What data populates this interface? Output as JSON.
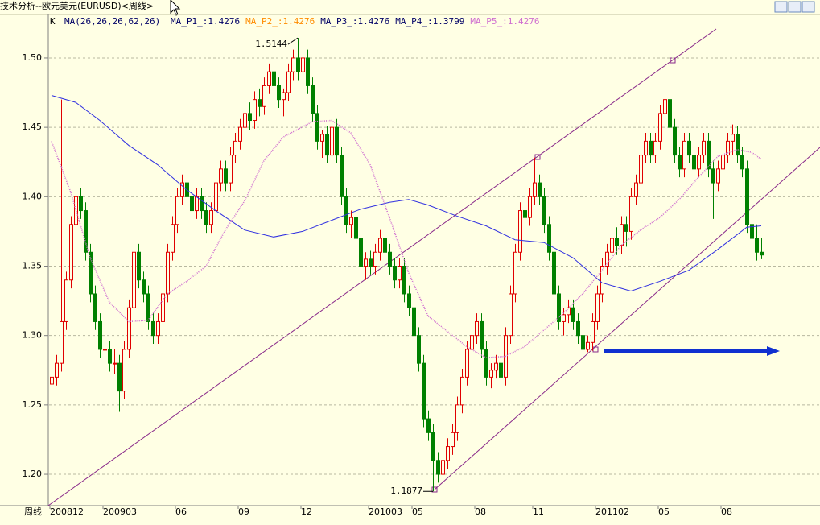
{
  "window_title": "技术分析--欧元美元(EURUSD)<周线>",
  "chart_data": {
    "type": "candlestick",
    "period_label": "周线",
    "indicator_k": "K",
    "indicator_label": "MA(26,26,26,62,26)",
    "readouts": [
      {
        "label": "MA_P1_:1.4276",
        "color": "#000066"
      },
      {
        "label": "MA_P2_:1.4276",
        "color": "#ff8c00"
      },
      {
        "label": "MA_P3_:1.4276",
        "color": "#000066"
      },
      {
        "label": "MA_P4_:1.3799",
        "color": "#000066"
      },
      {
        "label": "MA_P5_:1.4276",
        "color": "#d070d0"
      }
    ],
    "up_color": "#e00000",
    "down_color": "#008000",
    "ylim": [
      1.1774,
      1.5313
    ],
    "yticks": [
      {
        "value": 1.2,
        "label": "1.20"
      },
      {
        "value": 1.25,
        "label": "1.25"
      },
      {
        "value": 1.3,
        "label": "1.30"
      },
      {
        "value": 1.35,
        "label": "1.35"
      },
      {
        "value": 1.4,
        "label": "1.40"
      },
      {
        "value": 1.45,
        "label": "1.45"
      },
      {
        "value": 1.5,
        "label": "1.50"
      }
    ],
    "grid": true,
    "xticks": [
      {
        "value": 0,
        "label": "200812"
      },
      {
        "value": 11,
        "label": "200903"
      },
      {
        "value": 26,
        "label": "06"
      },
      {
        "value": 39,
        "label": "09"
      },
      {
        "value": 52,
        "label": "12"
      },
      {
        "value": 66,
        "label": "201003"
      },
      {
        "value": 75,
        "label": "05"
      },
      {
        "value": 88,
        "label": "08"
      },
      {
        "value": 100,
        "label": "11"
      },
      {
        "value": 113,
        "label": "201102"
      },
      {
        "value": 126,
        "label": "05"
      },
      {
        "value": 139,
        "label": "08"
      }
    ],
    "annotations": [
      {
        "label": "1.5144",
        "x": 51,
        "value": 1.5144
      },
      {
        "label": "1.1877",
        "x": 79,
        "value": 1.1877
      }
    ],
    "candles": [
      [
        1.265,
        1.274,
        1.258,
        1.27
      ],
      [
        1.27,
        1.286,
        1.264,
        1.28
      ],
      [
        1.28,
        1.47,
        1.274,
        1.31
      ],
      [
        1.31,
        1.346,
        1.304,
        1.34
      ],
      [
        1.34,
        1.386,
        1.334,
        1.38
      ],
      [
        1.38,
        1.406,
        1.374,
        1.4
      ],
      [
        1.4,
        1.406,
        1.384,
        1.39
      ],
      [
        1.39,
        1.396,
        1.354,
        1.36
      ],
      [
        1.36,
        1.366,
        1.324,
        1.33
      ],
      [
        1.33,
        1.336,
        1.304,
        1.31
      ],
      [
        1.31,
        1.316,
        1.284,
        1.29
      ],
      [
        1.29,
        1.3,
        1.282,
        1.29
      ],
      [
        1.29,
        1.296,
        1.274,
        1.28
      ],
      [
        1.28,
        1.29,
        1.272,
        1.28
      ],
      [
        1.28,
        1.286,
        1.245,
        1.26
      ],
      [
        1.26,
        1.296,
        1.254,
        1.29
      ],
      [
        1.29,
        1.326,
        1.284,
        1.32
      ],
      [
        1.32,
        1.366,
        1.314,
        1.36
      ],
      [
        1.36,
        1.366,
        1.334,
        1.34
      ],
      [
        1.34,
        1.346,
        1.324,
        1.33
      ],
      [
        1.33,
        1.336,
        1.304,
        1.31
      ],
      [
        1.31,
        1.316,
        1.294,
        1.3
      ],
      [
        1.3,
        1.316,
        1.294,
        1.31
      ],
      [
        1.31,
        1.336,
        1.304,
        1.33
      ],
      [
        1.33,
        1.366,
        1.324,
        1.36
      ],
      [
        1.36,
        1.386,
        1.354,
        1.38
      ],
      [
        1.38,
        1.406,
        1.374,
        1.4
      ],
      [
        1.4,
        1.416,
        1.394,
        1.41
      ],
      [
        1.41,
        1.416,
        1.394,
        1.4
      ],
      [
        1.4,
        1.406,
        1.384,
        1.39
      ],
      [
        1.39,
        1.406,
        1.384,
        1.4
      ],
      [
        1.4,
        1.406,
        1.384,
        1.39
      ],
      [
        1.39,
        1.396,
        1.374,
        1.38
      ],
      [
        1.38,
        1.396,
        1.374,
        1.39
      ],
      [
        1.39,
        1.416,
        1.384,
        1.41
      ],
      [
        1.41,
        1.426,
        1.404,
        1.42
      ],
      [
        1.42,
        1.426,
        1.404,
        1.41
      ],
      [
        1.41,
        1.436,
        1.404,
        1.43
      ],
      [
        1.43,
        1.446,
        1.424,
        1.44
      ],
      [
        1.44,
        1.456,
        1.434,
        1.45
      ],
      [
        1.45,
        1.466,
        1.444,
        1.46
      ],
      [
        1.46,
        1.468,
        1.448,
        1.455
      ],
      [
        1.455,
        1.476,
        1.449,
        1.47
      ],
      [
        1.47,
        1.478,
        1.458,
        1.465
      ],
      [
        1.465,
        1.486,
        1.459,
        1.48
      ],
      [
        1.48,
        1.496,
        1.474,
        1.49
      ],
      [
        1.49,
        1.496,
        1.474,
        1.48
      ],
      [
        1.48,
        1.486,
        1.464,
        1.47
      ],
      [
        1.47,
        1.478,
        1.458,
        1.475
      ],
      [
        1.475,
        1.496,
        1.469,
        1.49
      ],
      [
        1.49,
        1.506,
        1.484,
        1.5
      ],
      [
        1.5,
        1.5144,
        1.484,
        1.49
      ],
      [
        1.49,
        1.506,
        1.484,
        1.5
      ],
      [
        1.5,
        1.506,
        1.474,
        1.48
      ],
      [
        1.48,
        1.486,
        1.454,
        1.46
      ],
      [
        1.46,
        1.466,
        1.434,
        1.44
      ],
      [
        1.44,
        1.448,
        1.428,
        1.445
      ],
      [
        1.445,
        1.451,
        1.424,
        1.43
      ],
      [
        1.43,
        1.456,
        1.424,
        1.45
      ],
      [
        1.45,
        1.456,
        1.424,
        1.43
      ],
      [
        1.43,
        1.436,
        1.394,
        1.4
      ],
      [
        1.4,
        1.406,
        1.374,
        1.38
      ],
      [
        1.38,
        1.39,
        1.37,
        1.385
      ],
      [
        1.385,
        1.391,
        1.364,
        1.37
      ],
      [
        1.37,
        1.376,
        1.344,
        1.35
      ],
      [
        1.35,
        1.36,
        1.34,
        1.355
      ],
      [
        1.355,
        1.361,
        1.344,
        1.35
      ],
      [
        1.35,
        1.366,
        1.344,
        1.36
      ],
      [
        1.36,
        1.376,
        1.354,
        1.37
      ],
      [
        1.37,
        1.376,
        1.354,
        1.36
      ],
      [
        1.36,
        1.366,
        1.344,
        1.35
      ],
      [
        1.35,
        1.356,
        1.334,
        1.34
      ],
      [
        1.34,
        1.356,
        1.334,
        1.35
      ],
      [
        1.35,
        1.356,
        1.324,
        1.33
      ],
      [
        1.33,
        1.336,
        1.314,
        1.32
      ],
      [
        1.32,
        1.326,
        1.294,
        1.3
      ],
      [
        1.3,
        1.306,
        1.274,
        1.28
      ],
      [
        1.28,
        1.286,
        1.234,
        1.24
      ],
      [
        1.24,
        1.246,
        1.224,
        1.23
      ],
      [
        1.23,
        1.236,
        1.1877,
        1.21
      ],
      [
        1.21,
        1.216,
        1.194,
        1.2
      ],
      [
        1.2,
        1.216,
        1.194,
        1.21
      ],
      [
        1.21,
        1.226,
        1.204,
        1.22
      ],
      [
        1.22,
        1.236,
        1.214,
        1.23
      ],
      [
        1.23,
        1.256,
        1.224,
        1.25
      ],
      [
        1.25,
        1.276,
        1.244,
        1.27
      ],
      [
        1.27,
        1.296,
        1.264,
        1.29
      ],
      [
        1.29,
        1.306,
        1.284,
        1.3
      ],
      [
        1.3,
        1.316,
        1.294,
        1.31
      ],
      [
        1.31,
        1.316,
        1.284,
        1.29
      ],
      [
        1.29,
        1.296,
        1.264,
        1.27
      ],
      [
        1.27,
        1.28,
        1.262,
        1.275
      ],
      [
        1.275,
        1.286,
        1.269,
        1.28
      ],
      [
        1.28,
        1.286,
        1.264,
        1.27
      ],
      [
        1.27,
        1.306,
        1.264,
        1.3
      ],
      [
        1.3,
        1.336,
        1.294,
        1.33
      ],
      [
        1.33,
        1.366,
        1.324,
        1.36
      ],
      [
        1.36,
        1.396,
        1.354,
        1.39
      ],
      [
        1.39,
        1.4,
        1.38,
        1.385
      ],
      [
        1.385,
        1.406,
        1.379,
        1.4
      ],
      [
        1.4,
        1.4282,
        1.394,
        1.41
      ],
      [
        1.41,
        1.416,
        1.394,
        1.4
      ],
      [
        1.4,
        1.406,
        1.374,
        1.38
      ],
      [
        1.38,
        1.386,
        1.354,
        1.36
      ],
      [
        1.36,
        1.366,
        1.324,
        1.33
      ],
      [
        1.33,
        1.336,
        1.304,
        1.31
      ],
      [
        1.31,
        1.32,
        1.3,
        1.315
      ],
      [
        1.315,
        1.326,
        1.309,
        1.32
      ],
      [
        1.32,
        1.326,
        1.304,
        1.31
      ],
      [
        1.31,
        1.316,
        1.294,
        1.3
      ],
      [
        1.3,
        1.306,
        1.2875,
        1.29
      ],
      [
        1.29,
        1.3,
        1.288,
        1.295
      ],
      [
        1.295,
        1.316,
        1.289,
        1.31
      ],
      [
        1.31,
        1.336,
        1.304,
        1.33
      ],
      [
        1.33,
        1.356,
        1.324,
        1.35
      ],
      [
        1.35,
        1.366,
        1.344,
        1.36
      ],
      [
        1.36,
        1.376,
        1.354,
        1.37
      ],
      [
        1.37,
        1.378,
        1.358,
        1.365
      ],
      [
        1.365,
        1.386,
        1.359,
        1.38
      ],
      [
        1.38,
        1.386,
        1.364,
        1.375
      ],
      [
        1.375,
        1.406,
        1.369,
        1.4
      ],
      [
        1.4,
        1.416,
        1.394,
        1.41
      ],
      [
        1.41,
        1.436,
        1.404,
        1.43
      ],
      [
        1.43,
        1.446,
        1.424,
        1.44
      ],
      [
        1.44,
        1.446,
        1.424,
        1.43
      ],
      [
        1.43,
        1.446,
        1.424,
        1.44
      ],
      [
        1.44,
        1.466,
        1.434,
        1.46
      ],
      [
        1.46,
        1.494,
        1.454,
        1.47
      ],
      [
        1.47,
        1.476,
        1.444,
        1.45
      ],
      [
        1.45,
        1.456,
        1.424,
        1.43
      ],
      [
        1.43,
        1.436,
        1.414,
        1.42
      ],
      [
        1.42,
        1.446,
        1.414,
        1.44
      ],
      [
        1.44,
        1.446,
        1.424,
        1.43
      ],
      [
        1.43,
        1.436,
        1.414,
        1.42
      ],
      [
        1.42,
        1.436,
        1.414,
        1.43
      ],
      [
        1.43,
        1.446,
        1.424,
        1.44
      ],
      [
        1.44,
        1.446,
        1.414,
        1.42
      ],
      [
        1.42,
        1.426,
        1.384,
        1.41
      ],
      [
        1.41,
        1.426,
        1.404,
        1.42
      ],
      [
        1.42,
        1.436,
        1.414,
        1.43
      ],
      [
        1.43,
        1.446,
        1.424,
        1.44
      ],
      [
        1.44,
        1.452,
        1.43,
        1.445
      ],
      [
        1.445,
        1.451,
        1.424,
        1.43
      ],
      [
        1.43,
        1.436,
        1.414,
        1.42
      ],
      [
        1.42,
        1.426,
        1.374,
        1.38
      ],
      [
        1.38,
        1.392,
        1.35,
        1.37
      ],
      [
        1.37,
        1.38,
        1.354,
        1.36
      ],
      [
        1.36,
        1.37,
        1.355,
        1.358
      ]
    ],
    "lines": [
      {
        "color": "#3030e0",
        "dashed": false,
        "x": [
          0,
          5,
          10,
          16,
          22,
          28,
          34,
          40,
          46,
          52,
          58,
          64,
          70,
          74,
          78,
          84,
          90,
          96,
          102,
          108,
          114,
          120,
          126,
          132,
          138,
          144,
          147
        ],
        "values": [
          1.473,
          1.468,
          1.455,
          1.437,
          1.423,
          1.405,
          1.39,
          1.376,
          1.371,
          1.375,
          1.383,
          1.391,
          1.396,
          1.398,
          1.394,
          1.386,
          1.379,
          1.369,
          1.367,
          1.356,
          1.338,
          1.332,
          1.339,
          1.347,
          1.362,
          1.378,
          1.379
        ]
      },
      {
        "color": "#d070d0",
        "dashed": true,
        "x": [
          0,
          4,
          8,
          12,
          16,
          20,
          24,
          28,
          32,
          36,
          40,
          44,
          48,
          54,
          58,
          62,
          66,
          70,
          74,
          78,
          82,
          86,
          90,
          94,
          98,
          102,
          106,
          110,
          114,
          118,
          122,
          126,
          130,
          134,
          138,
          142,
          145,
          147
        ],
        "values": [
          1.44,
          1.403,
          1.356,
          1.324,
          1.31,
          1.311,
          1.33,
          1.339,
          1.35,
          1.376,
          1.397,
          1.426,
          1.443,
          1.454,
          1.455,
          1.446,
          1.423,
          1.385,
          1.345,
          1.314,
          1.303,
          1.292,
          1.284,
          1.285,
          1.292,
          1.304,
          1.316,
          1.33,
          1.347,
          1.365,
          1.376,
          1.385,
          1.398,
          1.414,
          1.429,
          1.434,
          1.432,
          1.427
        ]
      }
    ]
  }
}
